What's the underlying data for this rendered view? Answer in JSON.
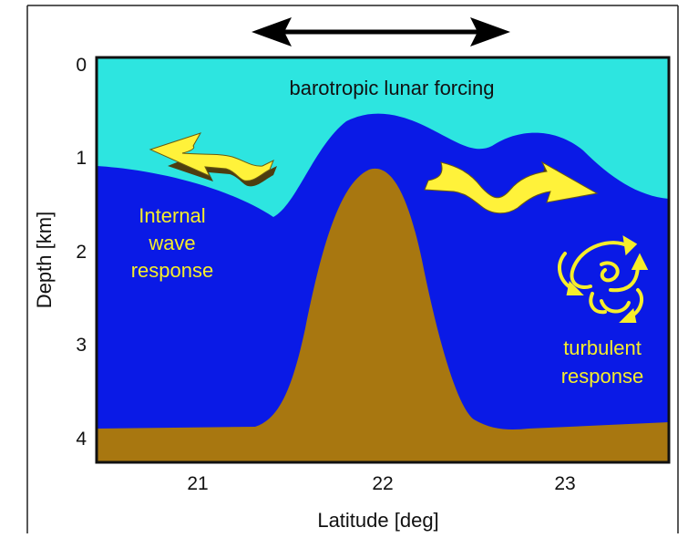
{
  "colors": {
    "surface_water": "#2de5e0",
    "deep_water": "#0a1ae6",
    "seafloor": "#a87710",
    "label_yellow": "#f6ee2a",
    "arrow_yellow": "#fff23a",
    "arrow_shadow": "#4d3d10",
    "frame": "#222222",
    "axis_text": "#111111"
  },
  "axes": {
    "x_label": "Latitude [deg]",
    "y_label": "Depth [km]",
    "x_ticks": [
      "21",
      "22",
      "23"
    ],
    "y_ticks": [
      "0",
      "1",
      "2",
      "3",
      "4"
    ]
  },
  "labels": {
    "forcing": "barotropic lunar forcing",
    "internal_line1": "Internal",
    "internal_line2": "wave",
    "internal_line3": "response",
    "turbulent_line1": "turbulent",
    "turbulent_line2": "response"
  },
  "icons": {
    "forcing_arrow": "double-headed-arrow-icon",
    "wave_arrow_left": "wavy-arrow-left-icon",
    "wave_arrow_right": "wavy-arrow-right-icon",
    "turbulence": "swirl-eddies-icon"
  }
}
